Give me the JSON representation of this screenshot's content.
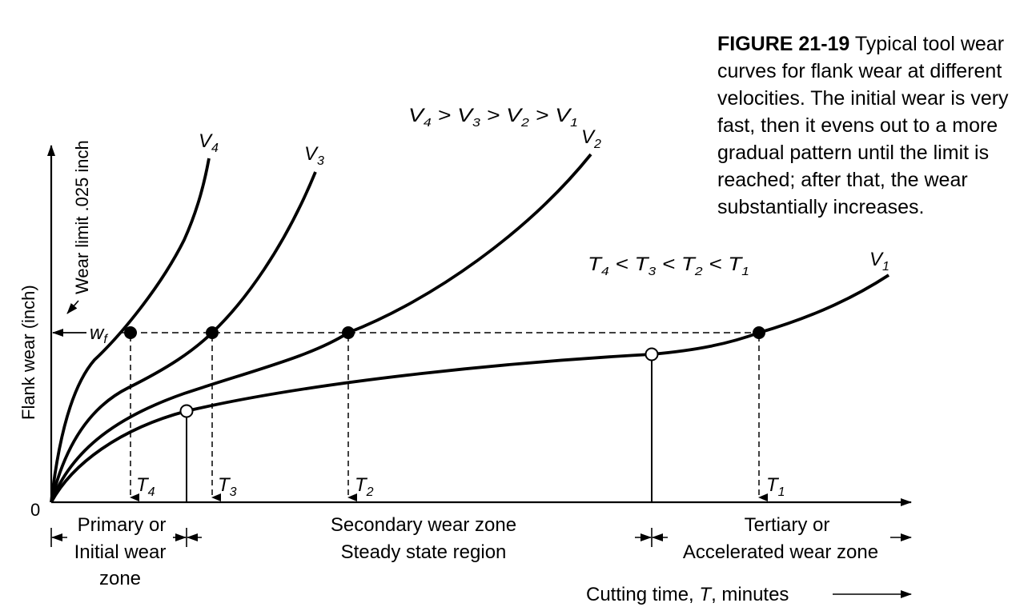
{
  "caption": {
    "label": "FIGURE 21-19",
    "text": " Typical tool wear curves for flank wear at different velocities. The initial wear is very fast, then it evens out to a more gradual pattern until the limit is reached; after that, the wear substantially increases."
  },
  "axes": {
    "y_label": "Flank wear (inch)",
    "x_label": "Cutting time, T, minutes",
    "origin": "0",
    "wear_limit": "Wear limit .025 inch",
    "wf": "w",
    "wf_sub": "f"
  },
  "relations": {
    "velocities": "V4 > V3 > V2 > V1",
    "times": "T4 < T3 < T2 < T1"
  },
  "curves": [
    {
      "name": "V",
      "sub": "4"
    },
    {
      "name": "V",
      "sub": "3"
    },
    {
      "name": "V",
      "sub": "2"
    },
    {
      "name": "V",
      "sub": "1"
    }
  ],
  "time_markers": [
    {
      "name": "T",
      "sub": "4"
    },
    {
      "name": "T",
      "sub": "3"
    },
    {
      "name": "T",
      "sub": "2"
    },
    {
      "name": "T",
      "sub": "1"
    }
  ],
  "zones": {
    "primary_line1": "Primary or",
    "primary_line2": "Initial wear",
    "primary_line3": "zone",
    "secondary_line1": "Secondary wear zone",
    "secondary_line2": "Steady state region",
    "tertiary_line1": "Tertiary or",
    "tertiary_line2": "Accelerated wear zone"
  },
  "colors": {
    "ink": "#000000",
    "background": "#ffffff"
  }
}
